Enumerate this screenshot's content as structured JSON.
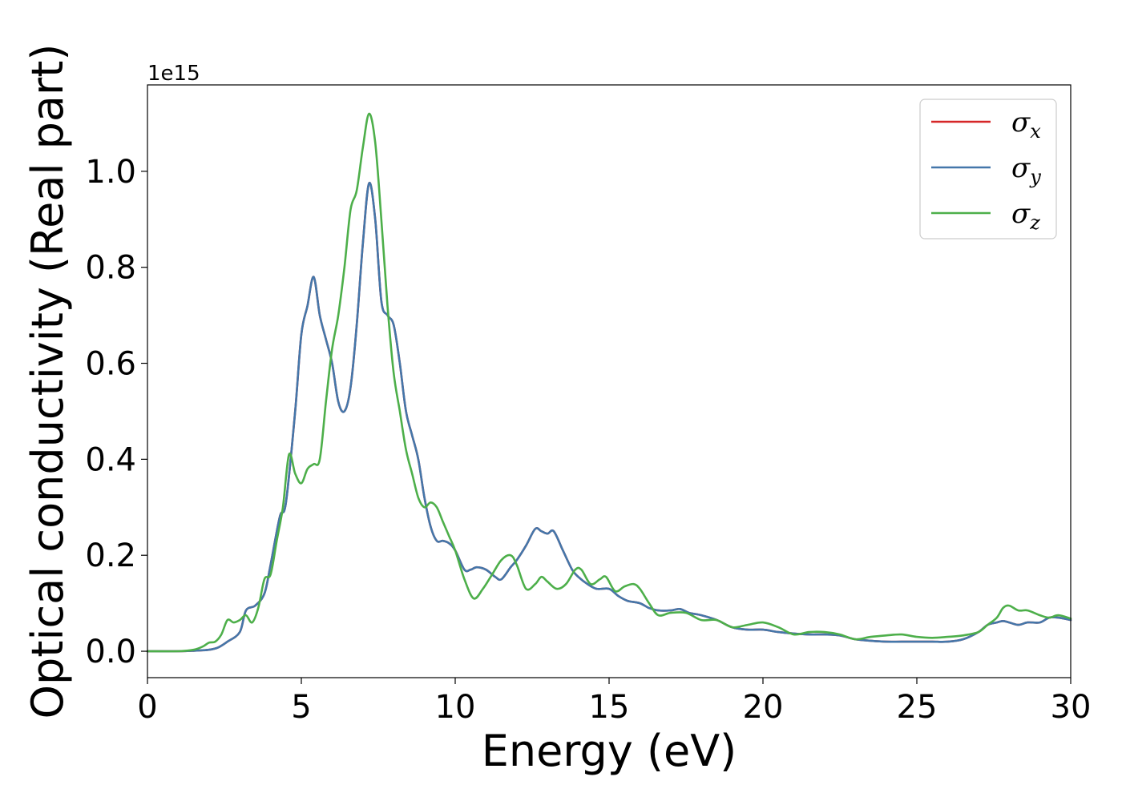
{
  "chart_data": {
    "type": "line",
    "title": "",
    "xlabel": "Energy (eV)",
    "ylabel": "Optical conductivity (Real part)",
    "y_offset_text": "1e15",
    "xlim": [
      0,
      30
    ],
    "ylim": [
      -0.055,
      1.18
    ],
    "x_ticks": [
      0,
      5,
      10,
      15,
      20,
      25,
      30
    ],
    "x_tick_labels": [
      "0",
      "5",
      "10",
      "15",
      "20",
      "25",
      "30"
    ],
    "y_ticks": [
      0.0,
      0.2,
      0.4,
      0.6,
      0.8,
      1.0
    ],
    "y_tick_labels": [
      "0.0",
      "0.2",
      "0.4",
      "0.6",
      "0.8",
      "1.0"
    ],
    "grid": false,
    "legend_position": "top-right",
    "series": [
      {
        "name": "σ_x",
        "symbol": "σ",
        "subscript": "x",
        "color": "#d62728",
        "x": [
          0,
          1,
          1.5,
          2,
          2.3,
          2.6,
          3.0,
          3.2,
          3.5,
          3.8,
          4.0,
          4.3,
          4.5,
          4.8,
          5.0,
          5.2,
          5.4,
          5.6,
          5.8,
          6.0,
          6.2,
          6.4,
          6.6,
          6.8,
          7.0,
          7.2,
          7.4,
          7.6,
          7.8,
          8.0,
          8.2,
          8.4,
          8.6,
          8.8,
          9.0,
          9.2,
          9.4,
          9.6,
          9.8,
          10.0,
          10.3,
          10.5,
          10.7,
          11.0,
          11.3,
          11.5,
          11.8,
          12.0,
          12.3,
          12.6,
          12.8,
          13.0,
          13.2,
          13.5,
          13.8,
          14.0,
          14.3,
          14.6,
          15.0,
          15.3,
          15.6,
          16.0,
          16.3,
          16.6,
          17.0,
          17.3,
          17.6,
          18.0,
          18.5,
          19.0,
          19.5,
          20.0,
          20.5,
          21.0,
          21.5,
          22.0,
          22.5,
          23.0,
          23.5,
          24.0,
          24.5,
          25.0,
          25.5,
          26.0,
          26.5,
          27.0,
          27.3,
          27.6,
          27.8,
          28.0,
          28.3,
          28.6,
          29.0,
          29.3,
          29.6,
          30.0
        ],
        "y": [
          0,
          0.0,
          0.001,
          0.003,
          0.008,
          0.02,
          0.04,
          0.085,
          0.095,
          0.12,
          0.18,
          0.28,
          0.31,
          0.5,
          0.66,
          0.72,
          0.78,
          0.7,
          0.65,
          0.6,
          0.52,
          0.5,
          0.55,
          0.68,
          0.85,
          0.975,
          0.9,
          0.73,
          0.7,
          0.68,
          0.6,
          0.5,
          0.45,
          0.4,
          0.32,
          0.26,
          0.23,
          0.23,
          0.225,
          0.21,
          0.17,
          0.17,
          0.175,
          0.17,
          0.155,
          0.15,
          0.175,
          0.19,
          0.22,
          0.255,
          0.25,
          0.245,
          0.25,
          0.21,
          0.17,
          0.155,
          0.14,
          0.13,
          0.13,
          0.115,
          0.105,
          0.1,
          0.09,
          0.085,
          0.085,
          0.088,
          0.08,
          0.075,
          0.065,
          0.05,
          0.045,
          0.045,
          0.04,
          0.037,
          0.035,
          0.035,
          0.033,
          0.025,
          0.022,
          0.02,
          0.02,
          0.02,
          0.02,
          0.02,
          0.025,
          0.04,
          0.055,
          0.06,
          0.063,
          0.06,
          0.055,
          0.06,
          0.06,
          0.07,
          0.07,
          0.065
        ]
      },
      {
        "name": "σ_y",
        "symbol": "σ",
        "subscript": "y",
        "color": "#4477aa",
        "x": [
          0,
          1,
          1.5,
          2,
          2.3,
          2.6,
          3.0,
          3.2,
          3.5,
          3.8,
          4.0,
          4.3,
          4.5,
          4.8,
          5.0,
          5.2,
          5.4,
          5.6,
          5.8,
          6.0,
          6.2,
          6.4,
          6.6,
          6.8,
          7.0,
          7.2,
          7.4,
          7.6,
          7.8,
          8.0,
          8.2,
          8.4,
          8.6,
          8.8,
          9.0,
          9.2,
          9.4,
          9.6,
          9.8,
          10.0,
          10.3,
          10.5,
          10.7,
          11.0,
          11.3,
          11.5,
          11.8,
          12.0,
          12.3,
          12.6,
          12.8,
          13.0,
          13.2,
          13.5,
          13.8,
          14.0,
          14.3,
          14.6,
          15.0,
          15.3,
          15.6,
          16.0,
          16.3,
          16.6,
          17.0,
          17.3,
          17.6,
          18.0,
          18.5,
          19.0,
          19.5,
          20.0,
          20.5,
          21.0,
          21.5,
          22.0,
          22.5,
          23.0,
          23.5,
          24.0,
          24.5,
          25.0,
          25.5,
          26.0,
          26.5,
          27.0,
          27.3,
          27.6,
          27.8,
          28.0,
          28.3,
          28.6,
          29.0,
          29.3,
          29.6,
          30.0
        ],
        "y": [
          0,
          0.0,
          0.001,
          0.003,
          0.008,
          0.02,
          0.04,
          0.085,
          0.095,
          0.12,
          0.18,
          0.28,
          0.31,
          0.5,
          0.66,
          0.72,
          0.78,
          0.7,
          0.65,
          0.6,
          0.52,
          0.5,
          0.55,
          0.68,
          0.85,
          0.975,
          0.9,
          0.73,
          0.7,
          0.68,
          0.6,
          0.5,
          0.45,
          0.4,
          0.32,
          0.26,
          0.23,
          0.23,
          0.225,
          0.21,
          0.17,
          0.17,
          0.175,
          0.17,
          0.155,
          0.15,
          0.175,
          0.19,
          0.22,
          0.255,
          0.25,
          0.245,
          0.25,
          0.21,
          0.17,
          0.155,
          0.14,
          0.13,
          0.13,
          0.115,
          0.105,
          0.1,
          0.09,
          0.085,
          0.085,
          0.088,
          0.08,
          0.075,
          0.065,
          0.05,
          0.045,
          0.045,
          0.04,
          0.037,
          0.035,
          0.035,
          0.033,
          0.025,
          0.022,
          0.02,
          0.02,
          0.02,
          0.02,
          0.02,
          0.025,
          0.04,
          0.055,
          0.06,
          0.063,
          0.06,
          0.055,
          0.06,
          0.06,
          0.07,
          0.07,
          0.065
        ]
      },
      {
        "name": "σ_z",
        "symbol": "σ",
        "subscript": "z",
        "color": "#4daf4a",
        "x": [
          0,
          1,
          1.5,
          1.8,
          2.0,
          2.2,
          2.4,
          2.6,
          2.8,
          3.0,
          3.2,
          3.4,
          3.6,
          3.8,
          4.0,
          4.2,
          4.4,
          4.6,
          4.8,
          5.0,
          5.2,
          5.4,
          5.6,
          5.8,
          6.0,
          6.2,
          6.4,
          6.6,
          6.8,
          7.0,
          7.2,
          7.4,
          7.6,
          7.8,
          8.0,
          8.2,
          8.4,
          8.6,
          8.8,
          9.0,
          9.2,
          9.4,
          9.6,
          9.8,
          10.0,
          10.3,
          10.6,
          10.9,
          11.2,
          11.5,
          11.8,
          12.0,
          12.3,
          12.6,
          12.8,
          13.0,
          13.3,
          13.6,
          13.9,
          14.1,
          14.4,
          14.7,
          14.9,
          15.2,
          15.5,
          15.8,
          16.0,
          16.3,
          16.6,
          17.0,
          17.5,
          18.0,
          18.5,
          19.0,
          19.5,
          20.0,
          20.5,
          21.0,
          21.5,
          22.0,
          22.5,
          23.0,
          23.5,
          24.0,
          24.5,
          25.0,
          25.5,
          26.0,
          26.5,
          27.0,
          27.3,
          27.6,
          27.8,
          28.0,
          28.3,
          28.6,
          29.0,
          29.3,
          29.6,
          30.0
        ],
        "y": [
          0,
          0.0,
          0.003,
          0.01,
          0.018,
          0.02,
          0.035,
          0.065,
          0.06,
          0.065,
          0.075,
          0.06,
          0.09,
          0.15,
          0.16,
          0.23,
          0.3,
          0.41,
          0.37,
          0.35,
          0.38,
          0.39,
          0.4,
          0.52,
          0.63,
          0.7,
          0.8,
          0.92,
          0.96,
          1.05,
          1.12,
          1.06,
          0.9,
          0.72,
          0.58,
          0.5,
          0.42,
          0.37,
          0.32,
          0.3,
          0.31,
          0.3,
          0.27,
          0.24,
          0.21,
          0.15,
          0.11,
          0.13,
          0.16,
          0.19,
          0.2,
          0.18,
          0.13,
          0.14,
          0.155,
          0.145,
          0.13,
          0.14,
          0.17,
          0.17,
          0.14,
          0.15,
          0.155,
          0.125,
          0.135,
          0.14,
          0.13,
          0.1,
          0.075,
          0.08,
          0.08,
          0.065,
          0.065,
          0.05,
          0.055,
          0.06,
          0.05,
          0.035,
          0.04,
          0.04,
          0.035,
          0.025,
          0.03,
          0.033,
          0.035,
          0.03,
          0.028,
          0.03,
          0.033,
          0.04,
          0.055,
          0.07,
          0.09,
          0.095,
          0.085,
          0.085,
          0.075,
          0.07,
          0.075,
          0.068
        ]
      }
    ]
  }
}
